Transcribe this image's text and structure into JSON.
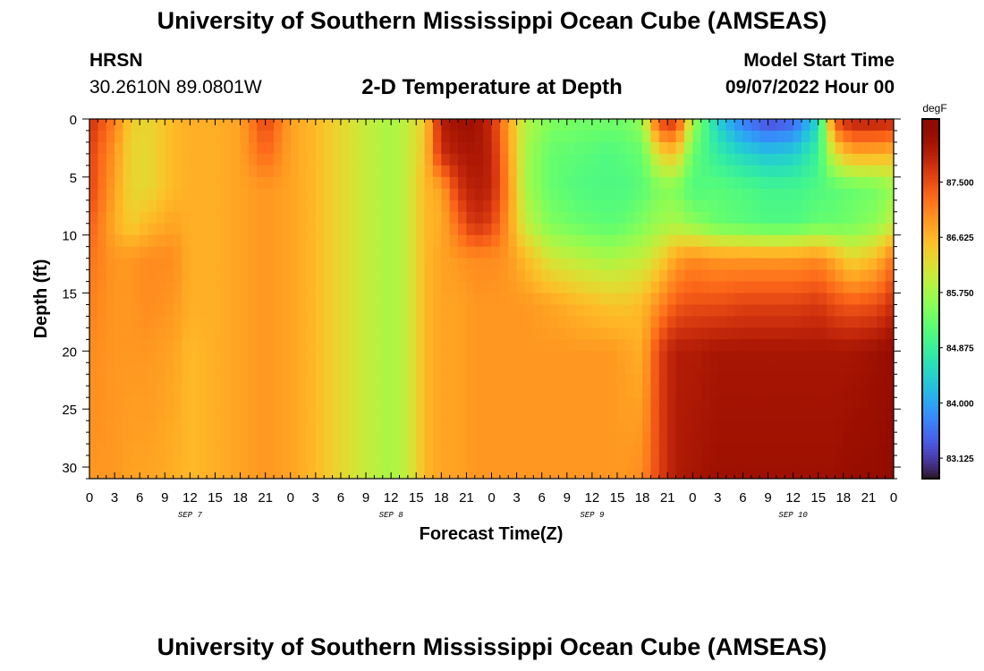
{
  "header": {
    "title": "University of Southern Mississippi Ocean Cube (AMSEAS)",
    "station": "HRSN",
    "coords": "30.2610N  89.0801W",
    "subtitle": "2-D Temperature at Depth",
    "model_start_label": "Model Start Time",
    "model_start_value": "09/07/2022 Hour 00"
  },
  "footer": {
    "title": "University of Southern Mississippi Ocean Cube (AMSEAS)"
  },
  "chart_data": {
    "type": "heatmap",
    "title": "2-D Temperature at Depth",
    "xlabel": "Forecast Time(Z)",
    "ylabel": "Depth (ft)",
    "x_range_hours": [
      0,
      96
    ],
    "y_range_ft": [
      0,
      31
    ],
    "y_inverted": true,
    "x_tick_labels": [
      "0",
      "3",
      "6",
      "9",
      "12",
      "15",
      "18",
      "21",
      "0",
      "3",
      "6",
      "9",
      "12",
      "15",
      "18",
      "21",
      "0",
      "3",
      "6",
      "9",
      "12",
      "15",
      "18",
      "21",
      "0",
      "3",
      "6",
      "9",
      "12",
      "15",
      "18",
      "21",
      "0"
    ],
    "date_labels": [
      {
        "label": "SEP 7",
        "hour": 12
      },
      {
        "label": "SEP 8",
        "hour": 36
      },
      {
        "label": "SEP 9",
        "hour": 60
      },
      {
        "label": "SEP 10",
        "hour": 84
      }
    ],
    "y_tick_labels": [
      "0",
      "5",
      "10",
      "15",
      "20",
      "25",
      "30"
    ],
    "y_ticks": [
      0,
      5,
      10,
      15,
      20,
      25,
      30
    ],
    "colorbar": {
      "unit": "degF",
      "min": 82.8,
      "max": 88.5,
      "ticks": [
        87.5,
        86.625,
        85.75,
        84.875,
        84.0,
        83.125
      ],
      "tick_labels": [
        "87.500",
        "86.625",
        "85.750",
        "84.875",
        "84.000",
        "83.125"
      ],
      "colormap": "turbo"
    },
    "depth_levels_ft": [
      0,
      3,
      6,
      9,
      12,
      16,
      20,
      31
    ],
    "columns": [
      {
        "hour": 0,
        "values": [
          87.8,
          87.6,
          87.6,
          87.4,
          87.2,
          87.1,
          87.0,
          86.9
        ]
      },
      {
        "hour": 3,
        "values": [
          87.1,
          86.9,
          86.8,
          86.7,
          86.9,
          86.9,
          86.9,
          86.9
        ]
      },
      {
        "hour": 5,
        "values": [
          86.4,
          86.3,
          86.3,
          86.4,
          86.9,
          86.9,
          86.9,
          86.8
        ]
      },
      {
        "hour": 7,
        "values": [
          86.3,
          86.3,
          86.3,
          86.6,
          87.0,
          87.0,
          86.9,
          86.8
        ]
      },
      {
        "hour": 10,
        "values": [
          86.6,
          86.6,
          86.6,
          86.8,
          87.0,
          86.9,
          86.8,
          86.7
        ]
      },
      {
        "hour": 12,
        "values": [
          86.7,
          86.7,
          86.7,
          86.7,
          86.7,
          86.7,
          86.6,
          86.6
        ]
      },
      {
        "hour": 15,
        "values": [
          86.7,
          86.7,
          86.7,
          86.7,
          86.7,
          86.7,
          86.7,
          86.7
        ]
      },
      {
        "hour": 18,
        "values": [
          86.8,
          86.8,
          86.8,
          86.8,
          86.8,
          86.8,
          86.8,
          86.8
        ]
      },
      {
        "hour": 21,
        "values": [
          87.6,
          87.3,
          86.9,
          86.9,
          86.9,
          86.9,
          86.9,
          86.9
        ]
      },
      {
        "hour": 24,
        "values": [
          86.8,
          86.8,
          86.8,
          86.8,
          86.8,
          86.8,
          86.8,
          86.8
        ]
      },
      {
        "hour": 27,
        "values": [
          86.6,
          86.6,
          86.6,
          86.6,
          86.6,
          86.6,
          86.6,
          86.6
        ]
      },
      {
        "hour": 30,
        "values": [
          86.3,
          86.3,
          86.3,
          86.3,
          86.3,
          86.3,
          86.3,
          86.3
        ]
      },
      {
        "hour": 33,
        "values": [
          86.0,
          86.0,
          86.0,
          86.0,
          86.0,
          86.0,
          86.0,
          86.0
        ]
      },
      {
        "hour": 36,
        "values": [
          85.8,
          85.8,
          85.8,
          85.8,
          85.8,
          85.8,
          85.8,
          85.8
        ]
      },
      {
        "hour": 38,
        "values": [
          86.0,
          86.0,
          86.0,
          86.0,
          86.0,
          86.0,
          86.0,
          86.0
        ]
      },
      {
        "hour": 40,
        "values": [
          86.4,
          86.5,
          86.6,
          86.6,
          86.6,
          86.6,
          86.6,
          86.6
        ]
      },
      {
        "hour": 42,
        "values": [
          88.0,
          87.8,
          86.8,
          86.7,
          86.8,
          86.8,
          86.8,
          86.8
        ]
      },
      {
        "hour": 44,
        "values": [
          88.2,
          88.0,
          87.7,
          87.3,
          86.9,
          86.8,
          86.8,
          86.8
        ]
      },
      {
        "hour": 46,
        "values": [
          88.2,
          88.1,
          88.0,
          87.8,
          87.0,
          86.9,
          86.9,
          86.9
        ]
      },
      {
        "hour": 48,
        "values": [
          87.8,
          87.9,
          87.9,
          87.6,
          87.0,
          86.9,
          86.9,
          86.9
        ]
      },
      {
        "hour": 50,
        "values": [
          86.8,
          86.9,
          87.0,
          86.9,
          86.9,
          86.9,
          86.9,
          86.9
        ]
      },
      {
        "hour": 52,
        "values": [
          85.9,
          85.8,
          85.8,
          86.0,
          86.6,
          86.9,
          86.9,
          86.9
        ]
      },
      {
        "hour": 55,
        "values": [
          85.5,
          85.3,
          85.3,
          85.5,
          86.1,
          86.8,
          86.9,
          86.9
        ]
      },
      {
        "hour": 59,
        "values": [
          85.4,
          85.2,
          85.1,
          85.3,
          85.9,
          86.6,
          86.9,
          86.9
        ]
      },
      {
        "hour": 62,
        "values": [
          85.4,
          85.1,
          85.1,
          85.2,
          85.8,
          86.5,
          86.9,
          86.9
        ]
      },
      {
        "hour": 64,
        "values": [
          85.4,
          85.2,
          85.1,
          85.3,
          85.9,
          86.5,
          86.8,
          86.9
        ]
      },
      {
        "hour": 66,
        "values": [
          85.7,
          85.3,
          85.2,
          85.5,
          86.0,
          86.6,
          86.7,
          87.0
        ]
      },
      {
        "hour": 68,
        "values": [
          87.6,
          86.3,
          85.5,
          85.7,
          86.3,
          87.0,
          87.6,
          87.6
        ]
      },
      {
        "hour": 70,
        "values": [
          87.8,
          86.5,
          85.5,
          85.8,
          86.8,
          87.4,
          88.0,
          88.0
        ]
      },
      {
        "hour": 72,
        "values": [
          85.8,
          85.3,
          85.1,
          85.6,
          87.0,
          87.5,
          88.0,
          88.1
        ]
      },
      {
        "hour": 75,
        "values": [
          84.4,
          84.8,
          85.2,
          85.3,
          86.9,
          87.5,
          88.1,
          88.2
        ]
      },
      {
        "hour": 78,
        "values": [
          83.6,
          84.5,
          85.1,
          85.2,
          86.9,
          87.6,
          88.1,
          88.2
        ]
      },
      {
        "hour": 81,
        "values": [
          83.2,
          84.3,
          85.0,
          85.1,
          86.9,
          87.6,
          88.1,
          88.2
        ]
      },
      {
        "hour": 84,
        "values": [
          83.4,
          84.4,
          85.0,
          85.1,
          86.9,
          87.6,
          88.1,
          88.2
        ]
      },
      {
        "hour": 87,
        "values": [
          84.5,
          84.9,
          85.1,
          85.3,
          87.0,
          87.7,
          88.1,
          88.2
        ]
      },
      {
        "hour": 89,
        "values": [
          87.5,
          86.2,
          85.2,
          85.3,
          86.7,
          87.5,
          88.1,
          88.2
        ]
      },
      {
        "hour": 91,
        "values": [
          88.0,
          86.7,
          85.3,
          85.4,
          86.3,
          87.4,
          88.1,
          88.3
        ]
      },
      {
        "hour": 94,
        "values": [
          88.0,
          86.7,
          85.4,
          85.6,
          86.6,
          87.5,
          88.2,
          88.3
        ]
      },
      {
        "hour": 96,
        "values": [
          87.9,
          86.6,
          85.7,
          86.0,
          87.2,
          87.8,
          88.3,
          88.4
        ]
      }
    ]
  }
}
